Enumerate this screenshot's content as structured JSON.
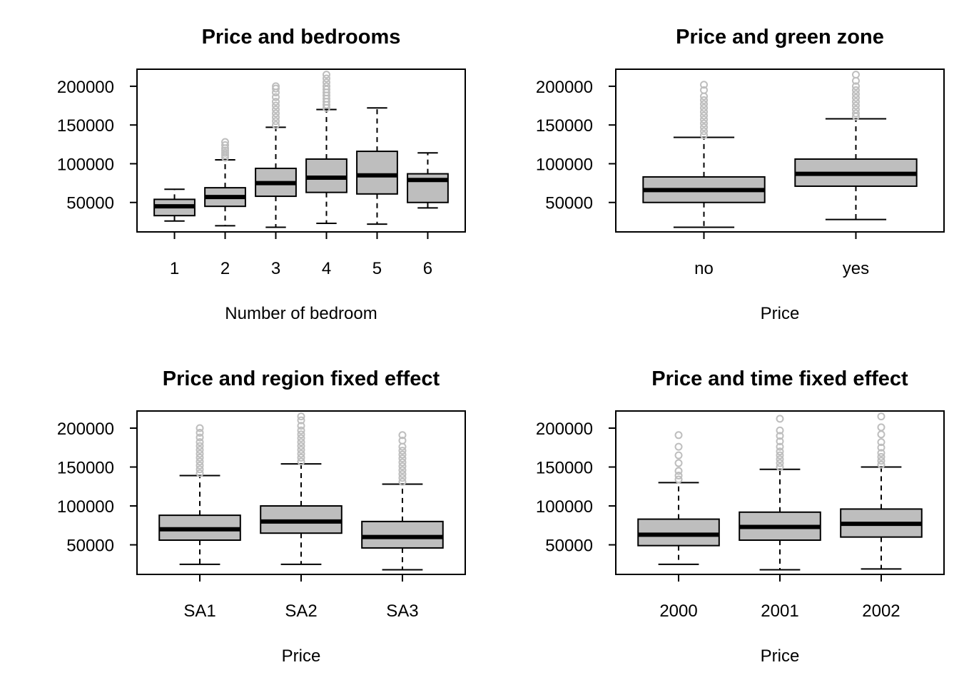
{
  "chart_data": [
    {
      "type": "box",
      "title": "Price and bedrooms",
      "xlabel": "Number of bedroom",
      "ylabel": "",
      "ylim": [
        12000,
        222000
      ],
      "yticks": [
        50000,
        100000,
        150000,
        200000
      ],
      "categories": [
        "1",
        "2",
        "3",
        "4",
        "5",
        "6"
      ],
      "boxes": [
        {
          "min": 26000,
          "q1": 33000,
          "median": 45000,
          "q3": 54000,
          "max": 67000,
          "outliers": []
        },
        {
          "min": 20000,
          "q1": 45000,
          "median": 57000,
          "q3": 69000,
          "max": 105000,
          "outliers": [
            108000,
            111000,
            114000,
            117000,
            120000,
            124000,
            128000
          ]
        },
        {
          "min": 18000,
          "q1": 58000,
          "median": 75000,
          "q3": 94000,
          "max": 147000,
          "outliers": [
            150000,
            155000,
            160000,
            165000,
            170000,
            175000,
            180000,
            186000,
            192000,
            197000,
            200000
          ]
        },
        {
          "min": 23000,
          "q1": 63000,
          "median": 82000,
          "q3": 106000,
          "max": 170000,
          "outliers": [
            172000,
            176000,
            180000,
            184000,
            188000,
            192000,
            196000,
            200000,
            205000,
            210000,
            215000
          ]
        },
        {
          "min": 22000,
          "q1": 61000,
          "median": 85000,
          "q3": 116000,
          "max": 172000,
          "outliers": []
        },
        {
          "min": 43000,
          "q1": 50000,
          "median": 79000,
          "q3": 87000,
          "max": 114000,
          "outliers": []
        }
      ],
      "colors": {
        "box": "#bebebe",
        "outlier": "#bebebe"
      }
    },
    {
      "type": "box",
      "title": "Price and green zone",
      "xlabel": "Price",
      "ylabel": "",
      "ylim": [
        12000,
        222000
      ],
      "yticks": [
        50000,
        100000,
        150000,
        200000
      ],
      "categories": [
        "no",
        "yes"
      ],
      "boxes": [
        {
          "min": 18000,
          "q1": 50000,
          "median": 66000,
          "q3": 83000,
          "max": 134000,
          "outliers": [
            137000,
            142000,
            147000,
            152000,
            157000,
            162000,
            167000,
            172000,
            177000,
            182000,
            187000,
            195000,
            202000
          ]
        },
        {
          "min": 28000,
          "q1": 71000,
          "median": 87000,
          "q3": 106000,
          "max": 158000,
          "outliers": [
            161000,
            165000,
            170000,
            175000,
            180000,
            185000,
            190000,
            195000,
            200000,
            207000,
            215000
          ]
        }
      ],
      "colors": {
        "box": "#bebebe",
        "outlier": "#bebebe"
      }
    },
    {
      "type": "box",
      "title": "Price and region fixed effect",
      "xlabel": "Price",
      "ylabel": "",
      "ylim": [
        12000,
        222000
      ],
      "yticks": [
        50000,
        100000,
        150000,
        200000
      ],
      "categories": [
        "SA1",
        "SA2",
        "SA3"
      ],
      "boxes": [
        {
          "min": 25000,
          "q1": 56000,
          "median": 70000,
          "q3": 88000,
          "max": 139000,
          "outliers": [
            142000,
            147000,
            152000,
            157000,
            162000,
            167000,
            172000,
            177000,
            182000,
            188000,
            194000,
            200000
          ]
        },
        {
          "min": 25000,
          "q1": 65000,
          "median": 80000,
          "q3": 100000,
          "max": 154000,
          "outliers": [
            157000,
            162000,
            167000,
            172000,
            177000,
            182000,
            187000,
            192000,
            197000,
            203000,
            210000,
            215000
          ]
        },
        {
          "min": 18000,
          "q1": 46000,
          "median": 60000,
          "q3": 80000,
          "max": 128000,
          "outliers": [
            131000,
            136000,
            141000,
            146000,
            151000,
            156000,
            161000,
            166000,
            171000,
            176000,
            184000,
            191000
          ]
        }
      ],
      "colors": {
        "box": "#bebebe",
        "outlier": "#bebebe"
      }
    },
    {
      "type": "box",
      "title": "Price and time fixed effect",
      "xlabel": "Price",
      "ylabel": "",
      "ylim": [
        12000,
        222000
      ],
      "yticks": [
        50000,
        100000,
        150000,
        200000
      ],
      "categories": [
        "2000",
        "2001",
        "2002"
      ],
      "boxes": [
        {
          "min": 25000,
          "q1": 49000,
          "median": 63000,
          "q3": 83000,
          "max": 130000,
          "outliers": [
            134000,
            139000,
            145000,
            155000,
            165000,
            176000,
            191000
          ]
        },
        {
          "min": 18000,
          "q1": 56000,
          "median": 73000,
          "q3": 92000,
          "max": 147000,
          "outliers": [
            150000,
            155000,
            160000,
            165000,
            170000,
            176000,
            183000,
            190000,
            197000,
            212000
          ]
        },
        {
          "min": 19000,
          "q1": 60000,
          "median": 77000,
          "q3": 96000,
          "max": 150000,
          "outliers": [
            153000,
            158000,
            163000,
            168000,
            175000,
            182000,
            192000,
            201000,
            215000
          ]
        }
      ],
      "colors": {
        "box": "#bebebe",
        "outlier": "#bebebe"
      }
    }
  ]
}
